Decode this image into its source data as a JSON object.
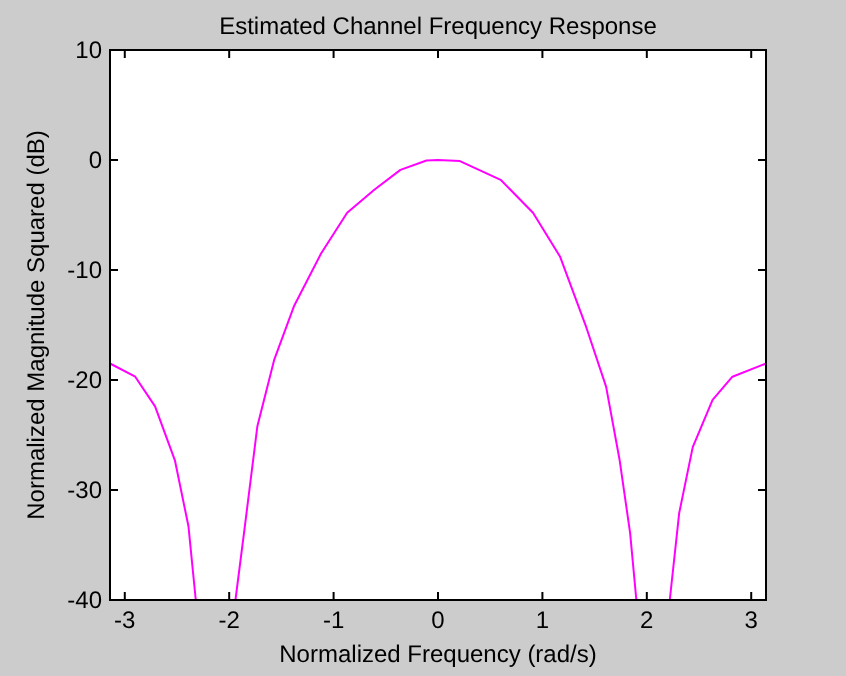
{
  "chart_data": {
    "type": "line",
    "title": "Estimated Channel Frequency Response",
    "xlabel": "Normalized Frequency (rad/s)",
    "ylabel": "Normalized Magnitude Squared (dB)",
    "xlim": [
      -3.1416,
      3.1416
    ],
    "ylim": [
      -40,
      10
    ],
    "xticks": [
      -3,
      -2,
      -1,
      0,
      1,
      2,
      3
    ],
    "yticks": [
      -40,
      -30,
      -20,
      -10,
      0,
      10
    ],
    "grid": false,
    "series": [
      {
        "color": "#ff00ff",
        "x": [
          -3.1416,
          -2.9,
          -2.71,
          -2.52,
          -2.39,
          -2.32,
          -2.13,
          -1.94,
          -1.85,
          -1.73,
          -1.57,
          -1.38,
          -1.12,
          -0.87,
          -0.61,
          -0.36,
          -0.11,
          0,
          0.21,
          0.6,
          0.91,
          1.17,
          1.42,
          1.61,
          1.74,
          1.84,
          1.9,
          2.06,
          2.22,
          2.31,
          2.44,
          2.63,
          2.82,
          3.1416
        ],
        "values": [
          -18.5,
          -19.7,
          -22.4,
          -27.3,
          -33.3,
          -40,
          null,
          -40,
          -33.3,
          -24.2,
          -18.2,
          -13.3,
          -8.5,
          -4.8,
          -2.7,
          -0.9,
          -0.05,
          0,
          -0.1,
          -1.8,
          -4.8,
          -8.8,
          -15.2,
          -20.6,
          -27.3,
          -33.9,
          -40,
          null,
          -40,
          -32.1,
          -26.1,
          -21.8,
          -19.7,
          -18.5
        ]
      }
    ]
  }
}
